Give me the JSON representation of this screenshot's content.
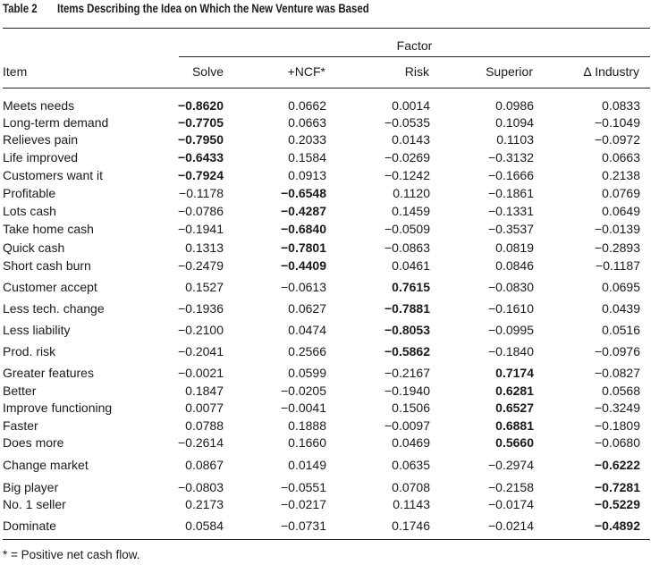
{
  "table": {
    "label": "Table 2",
    "title": "Items Describing the Idea on Which the New Venture was Based",
    "spanner": "Factor",
    "columns": [
      "Item",
      "Solve",
      "+NCF*",
      "Risk",
      "Superior",
      "∆ Industry"
    ],
    "rows": [
      {
        "item": "Meets needs",
        "values": [
          "−0.8620",
          "0.0662",
          "0.0014",
          "0.0986",
          "0.0833"
        ],
        "bold_col": 0
      },
      {
        "item": "Long-term demand",
        "values": [
          "−0.7705",
          "0.0663",
          "−0.0535",
          "0.1094",
          "−0.1049"
        ],
        "bold_col": 0
      },
      {
        "item": "Relieves pain",
        "values": [
          "−0.7950",
          "0.2033",
          "0.0143",
          "0.1103",
          "−0.0972"
        ],
        "bold_col": 0
      },
      {
        "item": "Life improved",
        "values": [
          "−0.6433",
          "0.1584",
          "−0.0269",
          "−0.3132",
          "0.0663"
        ],
        "bold_col": 0
      },
      {
        "item": "Customers want it",
        "values": [
          "−0.7924",
          "0.0913",
          "−0.1242",
          "−0.1666",
          "0.2138"
        ],
        "bold_col": 0
      },
      {
        "item": "Profitable",
        "values": [
          "−0.1178",
          "−0.6548",
          "0.1120",
          "−0.1861",
          "0.0769"
        ],
        "bold_col": 1
      },
      {
        "item": "Lots cash",
        "values": [
          "−0.0786",
          "−0.4287",
          "0.1459",
          "−0.1331",
          "0.0649"
        ],
        "bold_col": 1
      },
      {
        "item": "Take home cash",
        "values": [
          "−0.1941",
          "−0.6840",
          "−0.0509",
          "−0.3537",
          "−0.0139"
        ],
        "bold_col": 1
      },
      {
        "item": "Quick cash",
        "values": [
          "0.1313",
          "−0.7801",
          "−0.0863",
          "0.0819",
          "−0.2893"
        ],
        "bold_col": 1
      },
      {
        "item": "Short cash burn",
        "values": [
          "−0.2479",
          "−0.4409",
          "0.0461",
          "0.0846",
          "−0.1187"
        ],
        "bold_col": 1
      },
      {
        "item": "Customer accept",
        "values": [
          "0.1527",
          "−0.0613",
          "0.7615",
          "−0.0830",
          "0.0695"
        ],
        "bold_col": 2
      },
      {
        "item": "Less tech. change",
        "values": [
          "−0.1936",
          "0.0627",
          "−0.7881",
          "−0.1610",
          "0.0439"
        ],
        "bold_col": 2
      },
      {
        "item": "Less liability",
        "values": [
          "−0.2100",
          "0.0474",
          "−0.8053",
          "−0.0995",
          "0.0516"
        ],
        "bold_col": 2
      },
      {
        "item": "Prod. risk",
        "values": [
          "−0.2041",
          "0.2566",
          "−0.5862",
          "−0.1840",
          "−0.0976"
        ],
        "bold_col": 2
      },
      {
        "item": "Greater features",
        "values": [
          "−0.0021",
          "0.0599",
          "−0.2167",
          "0.7174",
          "−0.0827"
        ],
        "bold_col": 3
      },
      {
        "item": "Better",
        "values": [
          "0.1847",
          "−0.0205",
          "−0.1940",
          "0.6281",
          "0.0568"
        ],
        "bold_col": 3
      },
      {
        "item": "Improve functioning",
        "values": [
          "0.0077",
          "−0.0041",
          "0.1506",
          "0.6527",
          "−0.3249"
        ],
        "bold_col": 3
      },
      {
        "item": "Faster",
        "values": [
          "0.0788",
          "0.1888",
          "−0.0097",
          "0.6881",
          "−0.1809"
        ],
        "bold_col": 3
      },
      {
        "item": "Does more",
        "values": [
          "−0.2614",
          "0.1660",
          "0.0469",
          "0.5660",
          "−0.0680"
        ],
        "bold_col": 3
      },
      {
        "item": "Change market",
        "values": [
          "0.0867",
          "0.0149",
          "0.0635",
          "−0.2974",
          "−0.6222"
        ],
        "bold_col": 4
      },
      {
        "item": "Big player",
        "values": [
          "−0.0803",
          "−0.0551",
          "0.0708",
          "−0.2158",
          "−0.7281"
        ],
        "bold_col": 4
      },
      {
        "item": "No. 1 seller",
        "values": [
          "0.2173",
          "−0.0217",
          "0.1143",
          "−0.0174",
          "−0.5229"
        ],
        "bold_col": 4
      },
      {
        "item": "Dominate",
        "values": [
          "0.0584",
          "−0.0731",
          "0.1746",
          "−0.0214",
          "−0.4892"
        ],
        "bold_col": 4
      }
    ],
    "footnote": "* = Positive net cash flow."
  }
}
